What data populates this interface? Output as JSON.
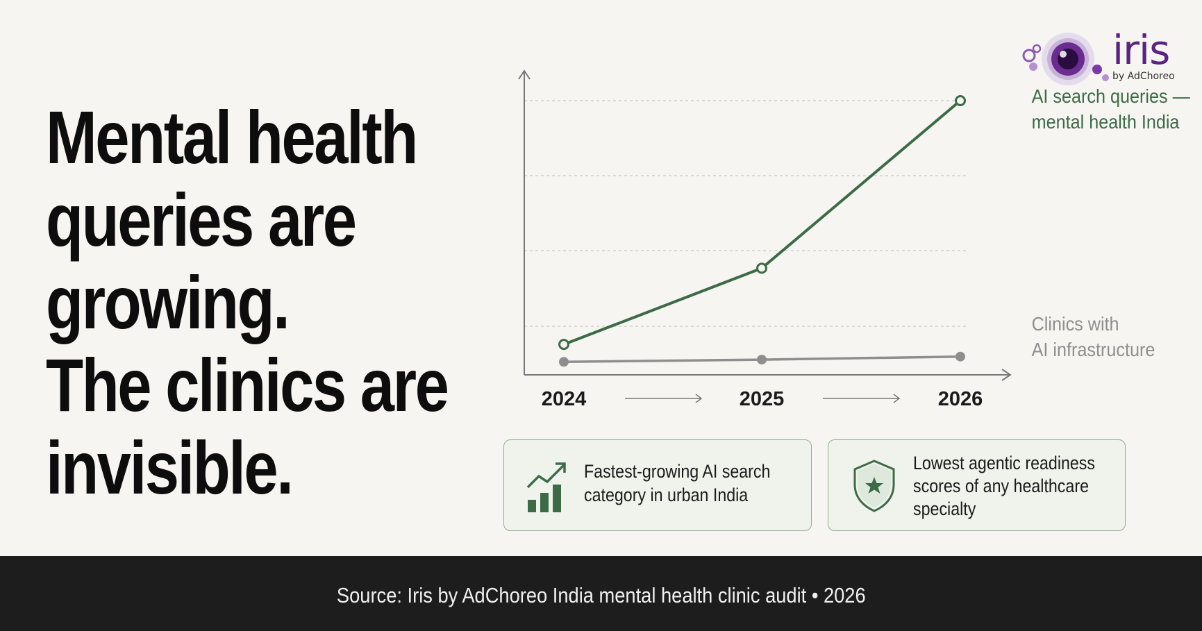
{
  "headline": {
    "lines": [
      "Mental health",
      "queries are",
      "growing.",
      "The clinics are",
      "invisible."
    ]
  },
  "logo": {
    "word": "iris",
    "sub": "by AdChoreo",
    "color": "#5a2382"
  },
  "chart_data": {
    "type": "line",
    "x": [
      "2024",
      "2025",
      "2026"
    ],
    "series": [
      {
        "name": "AI search queries — mental health India",
        "label_lines": [
          "AI search queries —",
          "mental health India"
        ],
        "values": [
          0.4,
          1.4,
          3.6
        ],
        "color": "#3d6b47"
      },
      {
        "name": "Clinics with AI infrastructure",
        "label_lines": [
          "Clinics with",
          "AI infrastructure"
        ],
        "values": [
          0.17,
          0.2,
          0.24
        ],
        "color": "#8e8e8e"
      }
    ],
    "ylim": [
      0,
      3.6
    ],
    "grid": true,
    "y_tick_labels": false,
    "legend": "inline-right"
  },
  "cards": [
    {
      "icon": "growth-bar-chart-icon",
      "text": "Fastest-growing AI search\ncategory in urban India"
    },
    {
      "icon": "shield-star-icon",
      "text": "Lowest agentic readiness\nscores of any healthcare\nspecialty"
    }
  ],
  "footer": {
    "text": "Source: Iris by AdChoreo India mental health clinic audit  •  2026"
  },
  "colors": {
    "background": "#f6f5f1",
    "accent_green": "#3d6b47",
    "muted_gray": "#8e8e8e",
    "footer_bg": "#1d1d1d"
  }
}
